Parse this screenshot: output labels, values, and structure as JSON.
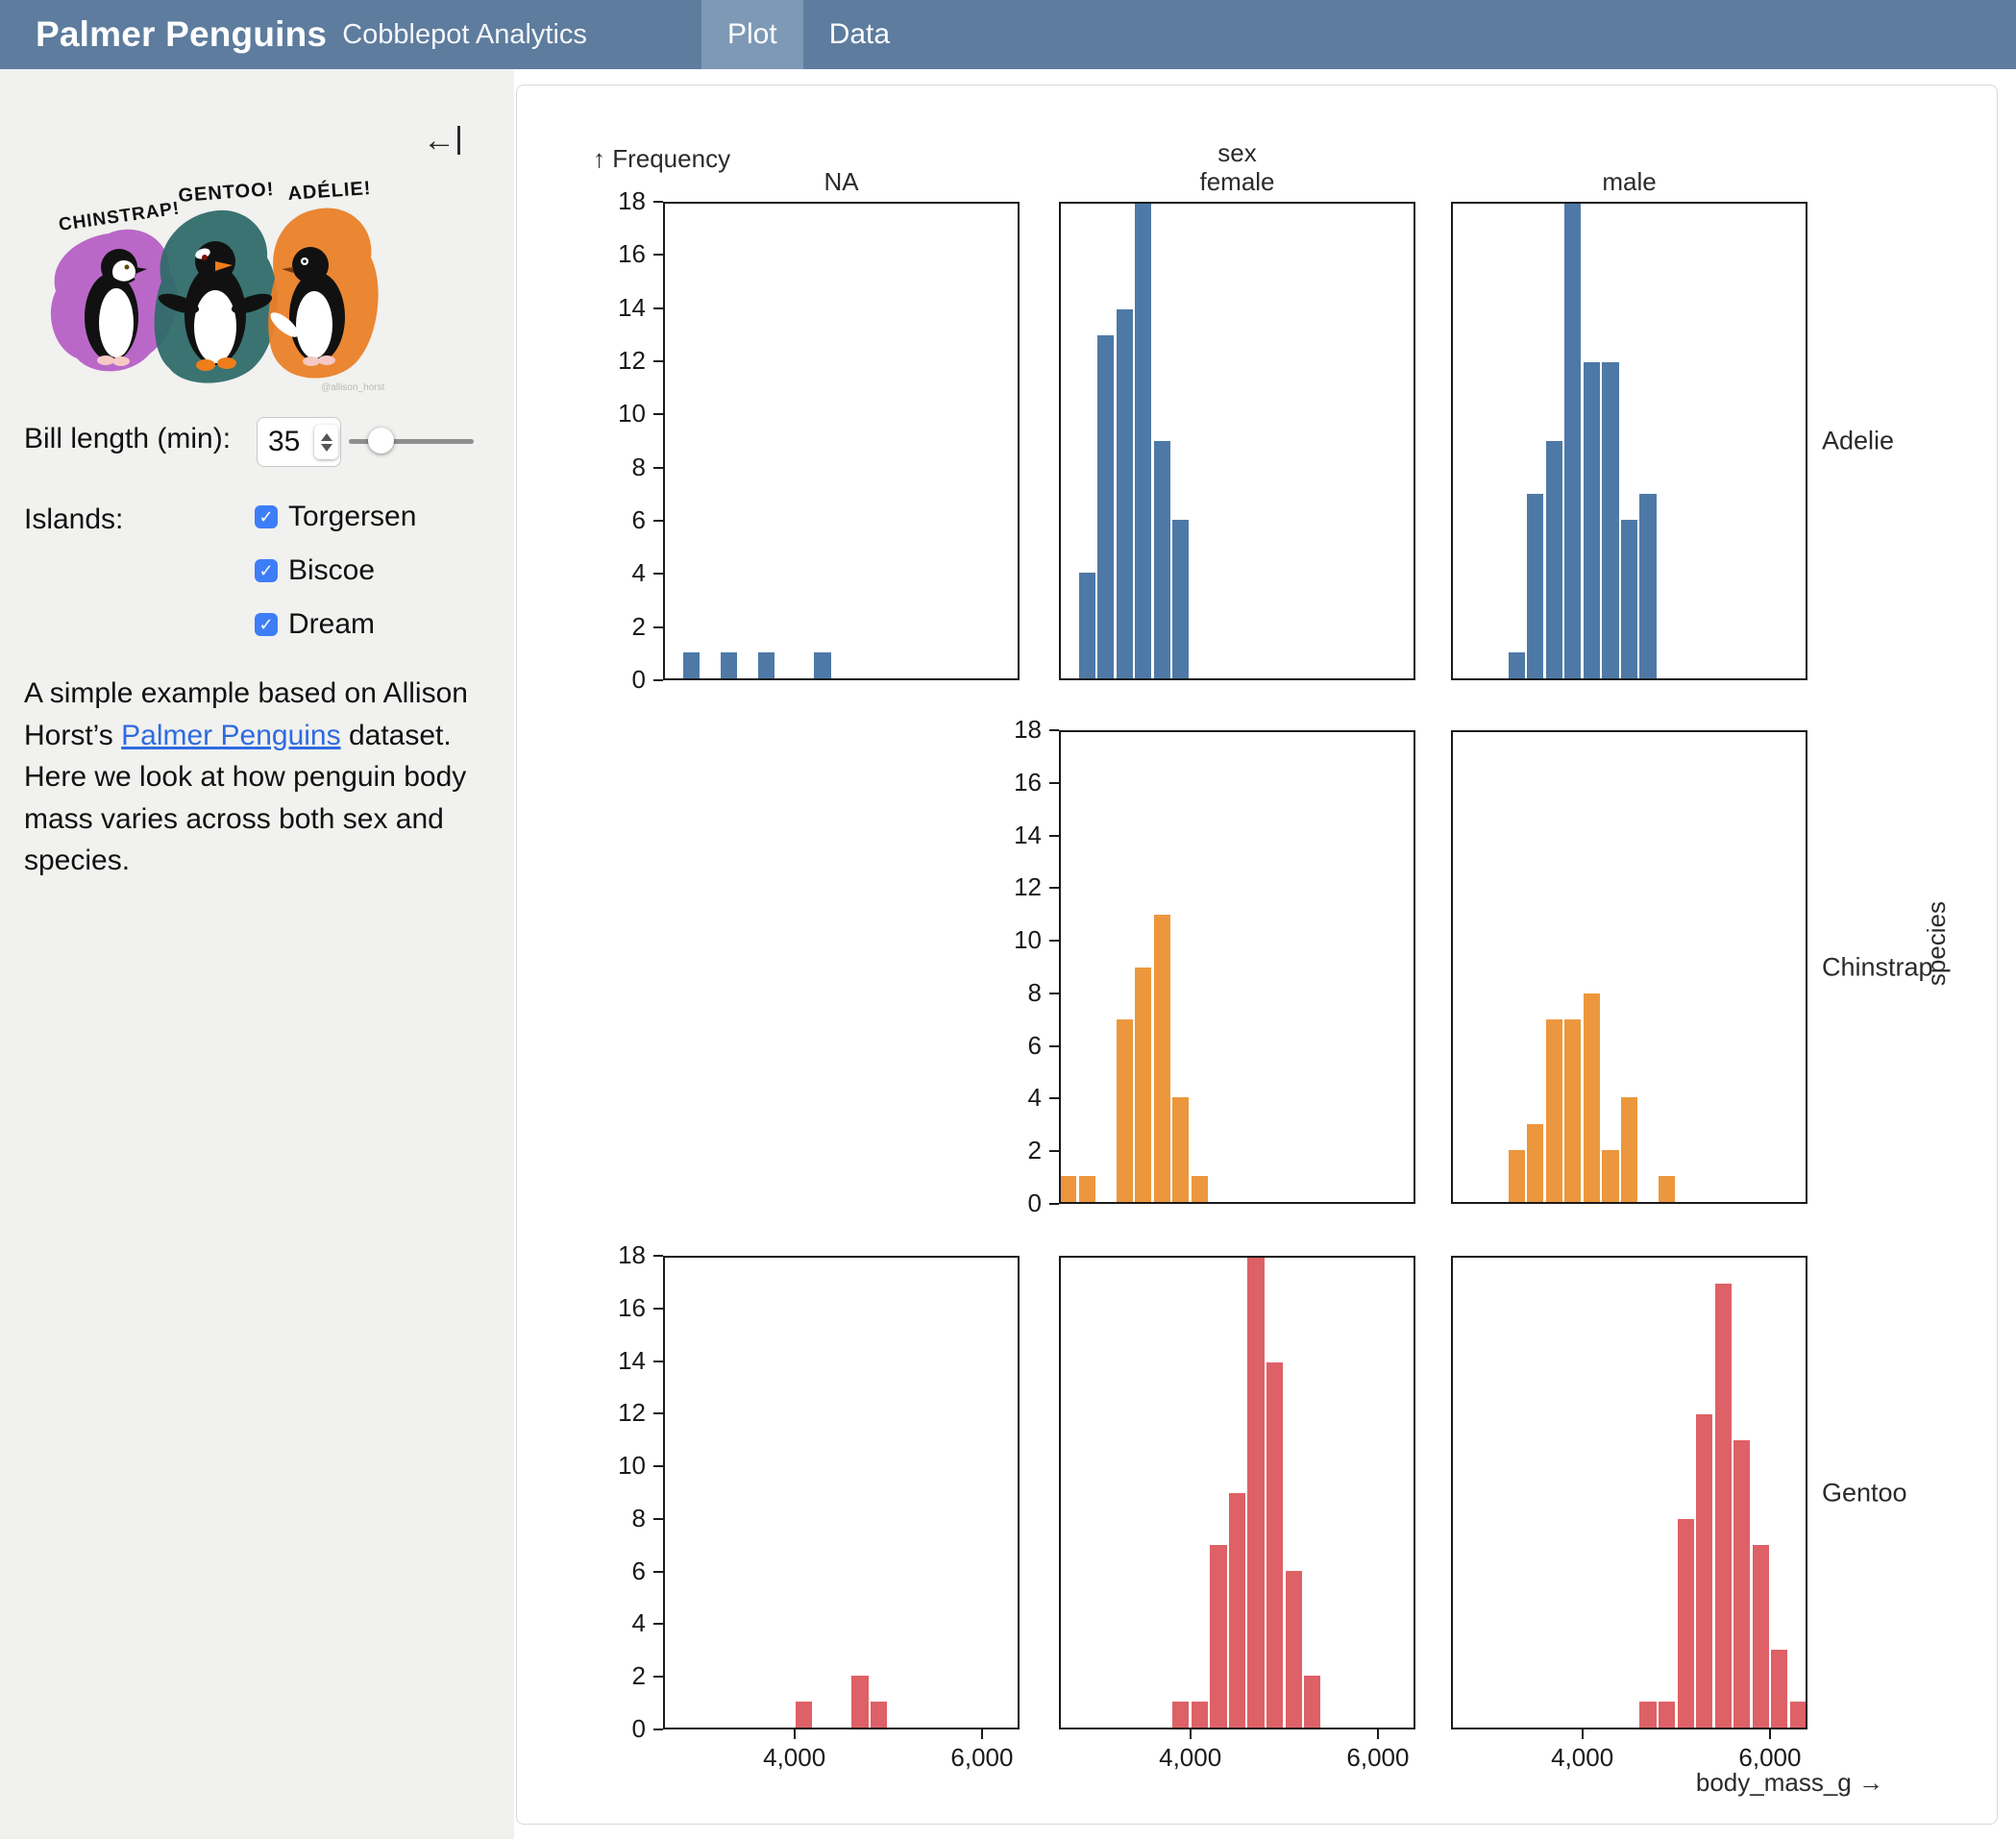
{
  "header": {
    "title": "Palmer Penguins",
    "subtitle": "Cobblepot Analytics",
    "tabs": [
      {
        "label": "Plot",
        "active": true
      },
      {
        "label": "Data",
        "active": false
      }
    ]
  },
  "sidebar": {
    "collapse_icon": "←",
    "artwork": {
      "labels": [
        "CHINSTRAP!",
        "GENTOO!",
        "ADÉLIE!"
      ],
      "colors": [
        "#b55cc4",
        "#2f6b6a",
        "#ea7f28"
      ],
      "credit": "@allison_horst"
    },
    "bill_length": {
      "label": "Bill length (min):",
      "value": "35"
    },
    "islands": {
      "label": "Islands:",
      "options": [
        {
          "label": "Torgersen",
          "checked": true
        },
        {
          "label": "Biscoe",
          "checked": true
        },
        {
          "label": "Dream",
          "checked": true
        }
      ]
    },
    "description": {
      "text_before_link": "A simple example based on Allison Horst’s ",
      "link": "Palmer Penguins",
      "text_after_link": " dataset. Here we look at how penguin body mass varies across both sex and species."
    }
  },
  "chart_data": {
    "type": "bar",
    "subtype": "faceted-histogram",
    "xlabel": "body_mass_g →",
    "ylabel": "↑ Frequency",
    "x_field": "body_mass_g",
    "bin_width": 200,
    "xlim": [
      2600,
      6400
    ],
    "ylim": [
      0,
      18
    ],
    "grid": false,
    "x_ticks": [
      4000,
      6000
    ],
    "x_tick_labels": [
      "4,000",
      "6,000"
    ],
    "y_ticks": [
      0,
      2,
      4,
      6,
      8,
      10,
      12,
      14,
      16,
      18
    ],
    "facet_col": {
      "label": "sex",
      "values": [
        "NA",
        "female",
        "male"
      ]
    },
    "facet_row": {
      "label": "species",
      "values": [
        "Adelie",
        "Chinstrap",
        "Gentoo"
      ]
    },
    "series_colors": {
      "Adelie": "#4e79a7",
      "Chinstrap": "#ec973d",
      "Gentoo": "#dd6166"
    },
    "facets": [
      {
        "row": "Adelie",
        "col": "NA",
        "bins": [
          [
            2800,
            1
          ],
          [
            3200,
            1
          ],
          [
            3600,
            1
          ],
          [
            4200,
            1
          ]
        ]
      },
      {
        "row": "Adelie",
        "col": "female",
        "bins": [
          [
            2800,
            4
          ],
          [
            3000,
            13
          ],
          [
            3200,
            14
          ],
          [
            3400,
            18
          ],
          [
            3600,
            9
          ],
          [
            3800,
            6
          ]
        ]
      },
      {
        "row": "Adelie",
        "col": "male",
        "bins": [
          [
            3200,
            1
          ],
          [
            3400,
            7
          ],
          [
            3600,
            9
          ],
          [
            3800,
            18
          ],
          [
            4000,
            12
          ],
          [
            4200,
            12
          ],
          [
            4400,
            6
          ],
          [
            4600,
            7
          ]
        ]
      },
      {
        "row": "Chinstrap",
        "col": "female",
        "bins": [
          [
            2600,
            1
          ],
          [
            2800,
            1
          ],
          [
            3200,
            7
          ],
          [
            3400,
            9
          ],
          [
            3600,
            11
          ],
          [
            3800,
            4
          ],
          [
            4000,
            1
          ]
        ]
      },
      {
        "row": "Chinstrap",
        "col": "male",
        "bins": [
          [
            3200,
            2
          ],
          [
            3400,
            3
          ],
          [
            3600,
            7
          ],
          [
            3800,
            7
          ],
          [
            4000,
            8
          ],
          [
            4200,
            2
          ],
          [
            4400,
            4
          ],
          [
            4800,
            1
          ]
        ]
      },
      {
        "row": "Gentoo",
        "col": "NA",
        "bins": [
          [
            4000,
            1
          ],
          [
            4600,
            2
          ],
          [
            4800,
            1
          ]
        ]
      },
      {
        "row": "Gentoo",
        "col": "female",
        "bins": [
          [
            3800,
            1
          ],
          [
            4000,
            1
          ],
          [
            4200,
            7
          ],
          [
            4400,
            9
          ],
          [
            4600,
            18
          ],
          [
            4800,
            14
          ],
          [
            5000,
            6
          ],
          [
            5200,
            2
          ]
        ]
      },
      {
        "row": "Gentoo",
        "col": "male",
        "bins": [
          [
            4600,
            1
          ],
          [
            4800,
            1
          ],
          [
            5000,
            8
          ],
          [
            5200,
            12
          ],
          [
            5400,
            17
          ],
          [
            5600,
            11
          ],
          [
            5800,
            7
          ],
          [
            6000,
            3
          ],
          [
            6200,
            1
          ]
        ]
      }
    ]
  }
}
